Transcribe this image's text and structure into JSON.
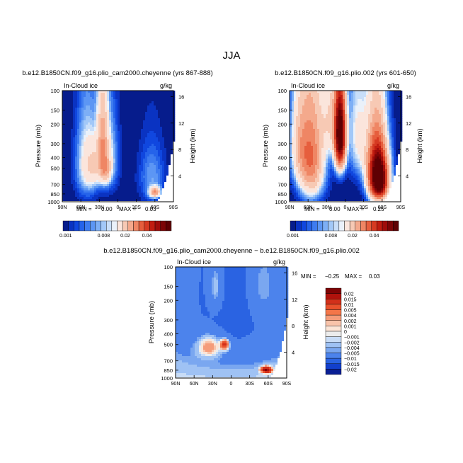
{
  "figure": {
    "title": "JJA"
  },
  "chart_data": [
    {
      "type": "heatmap",
      "title": "b.e12.B1850CN.f09_g16.plio_cam2000.cheyenne (yrs 867-888)",
      "variable": "In-Cloud ice",
      "units": "g/kg",
      "xlabel": "",
      "x_ticks": [
        "90N",
        "60N",
        "30N",
        "0",
        "30S",
        "60S",
        "90S"
      ],
      "ylabel": "Pressure (mb)",
      "y_ticks": [
        "100",
        "150",
        "200",
        "300",
        "400",
        "500",
        "700",
        "850",
        "1000"
      ],
      "ylabel_right": "Height (km)",
      "y_ticks_right": [
        "16",
        "12",
        "8",
        "4"
      ],
      "min_label": "MIN =",
      "min": "0.00",
      "max_label": "MAX =",
      "max": "0.03",
      "blobs": [
        {
          "lat": 50,
          "p": 450,
          "amp": 0.012,
          "wlat": 12,
          "wp": 260
        },
        {
          "lat": 25,
          "p": 280,
          "amp": 0.018,
          "wlat": 6,
          "wp": 200
        },
        {
          "lat": 15,
          "p": 400,
          "amp": 0.01,
          "wlat": 10,
          "wp": 220
        },
        {
          "lat": 20,
          "p": 520,
          "amp": 0.012,
          "wlat": 6,
          "wp": 100
        },
        {
          "lat": 38,
          "p": 480,
          "amp": 0.008,
          "wlat": 8,
          "wp": 150
        },
        {
          "lat": -55,
          "p": 600,
          "amp": 0.006,
          "wlat": 14,
          "wp": 250
        },
        {
          "lat": -60,
          "p": 820,
          "amp": 0.022,
          "wlat": 6,
          "wp": 60
        }
      ]
    },
    {
      "type": "heatmap",
      "title": "b.e12.B1850CN.f09_g16.plio.002 (yrs 601-650)",
      "variable": "In-Cloud ice",
      "units": "g/kg",
      "xlabel": "",
      "x_ticks": [
        "90N",
        "60N",
        "30N",
        "0",
        "30S",
        "60S",
        "90S"
      ],
      "ylabel": "Pressure (mb)",
      "y_ticks": [
        "100",
        "150",
        "200",
        "300",
        "400",
        "500",
        "700",
        "850",
        "1000"
      ],
      "ylabel_right": "Height (km)",
      "y_ticks_right": [
        "16",
        "12",
        "8",
        "4"
      ],
      "min_label": "MIN =",
      "min": "0.00",
      "max_label": "MAX =",
      "max": "0.25",
      "blobs": [
        {
          "lat": 55,
          "p": 400,
          "amp": 0.03,
          "wlat": 14,
          "wp": 300
        },
        {
          "lat": 8,
          "p": 260,
          "amp": 0.06,
          "wlat": 6,
          "wp": 150
        },
        {
          "lat": 20,
          "p": 180,
          "amp": 0.015,
          "wlat": 12,
          "wp": 120
        },
        {
          "lat": -50,
          "p": 400,
          "amp": 0.03,
          "wlat": 12,
          "wp": 250
        },
        {
          "lat": -55,
          "p": 650,
          "amp": 0.06,
          "wlat": 10,
          "wp": 200
        },
        {
          "lat": -20,
          "p": 250,
          "amp": 0.01,
          "wlat": 10,
          "wp": 200
        },
        {
          "lat": 75,
          "p": 300,
          "amp": 0.012,
          "wlat": 10,
          "wp": 200
        }
      ]
    },
    {
      "type": "heatmap",
      "title": "b.e12.B1850CN.f09_g16.plio_cam2000.cheyenne − b.e12.B1850CN.f09_g16.plio.002",
      "variable": "In-Cloud ice",
      "units": "g/kg",
      "xlabel": "",
      "x_ticks": [
        "90N",
        "60N",
        "30N",
        "0",
        "30S",
        "60S",
        "90S"
      ],
      "ylabel": "Pressure (mb)",
      "y_ticks": [
        "100",
        "150",
        "200",
        "300",
        "400",
        "500",
        "700",
        "850",
        "1000"
      ],
      "ylabel_right": "Height (km)",
      "y_ticks_right": [
        "16",
        "12",
        "8",
        "4"
      ],
      "min_label": "MIN =",
      "min": "−0.25",
      "max_label": "MAX =",
      "max": "0.03",
      "blobs": [
        {
          "lat": 0,
          "p": 200,
          "amp": -0.012,
          "wlat": 90,
          "wp": 500
        },
        {
          "lat": 0,
          "p": 1000,
          "amp": 0.0015,
          "wlat": 90,
          "wp": 400
        },
        {
          "lat": 35,
          "p": 520,
          "amp": 0.012,
          "wlat": 15,
          "wp": 90
        },
        {
          "lat": 10,
          "p": 500,
          "amp": 0.018,
          "wlat": 5,
          "wp": 40
        },
        {
          "lat": -57,
          "p": 840,
          "amp": 0.025,
          "wlat": 6,
          "wp": 40
        },
        {
          "lat": 25,
          "p": 150,
          "amp": 0.008,
          "wlat": 8,
          "wp": 60
        },
        {
          "lat": -50,
          "p": 150,
          "amp": 0.006,
          "wlat": 15,
          "wp": 80
        }
      ]
    }
  ],
  "colorbar_abs": {
    "levels": [
      "0.001",
      "0.002",
      "0.003",
      "0.004",
      "0.005",
      "0.006",
      "0.007",
      "0.008",
      "0.009",
      "0.01",
      "0.015",
      "0.02",
      "0.025",
      "0.03",
      "0.035",
      "0.04",
      "0.045",
      "0.05",
      "0.055"
    ],
    "tick_labels": [
      "0.001",
      "0.008",
      "0.02",
      "0.04"
    ],
    "colors": [
      "#061c8c",
      "#0a33c2",
      "#1047df",
      "#2563ea",
      "#3e7cf0",
      "#5c96f4",
      "#7daff6",
      "#a2c8f8",
      "#c8def9",
      "#eaf1fa",
      "#fbe5dc",
      "#f7c9b4",
      "#f4a98c",
      "#ef8664",
      "#e65e3d",
      "#d63a22",
      "#c01c10",
      "#9f0c0a",
      "#7c0406",
      "#5e0003"
    ]
  },
  "colorbar_diff": {
    "labels": [
      "0.02",
      "0.015",
      "0.01",
      "0.005",
      "0.004",
      "0.002",
      "0.001",
      "0",
      "−0.001",
      "−0.002",
      "−0.004",
      "−0.005",
      "−0.01",
      "−0.015",
      "−0.02"
    ],
    "thresholds": [
      0.02,
      0.015,
      0.01,
      0.005,
      0.004,
      0.002,
      0.001,
      0,
      -0.001,
      -0.002,
      -0.004,
      -0.005,
      -0.01,
      -0.015,
      -0.02
    ],
    "colors": [
      "#7e0405",
      "#b0120c",
      "#d2301a",
      "#e9512c",
      "#f47649",
      "#f59c7a",
      "#f8c3aa",
      "#fbe4d6",
      "#ececec",
      "#c8dcf6",
      "#9fc2f4",
      "#7aa7f0",
      "#4c83ec",
      "#2a63e2",
      "#123fcc",
      "#0a1f95"
    ]
  }
}
